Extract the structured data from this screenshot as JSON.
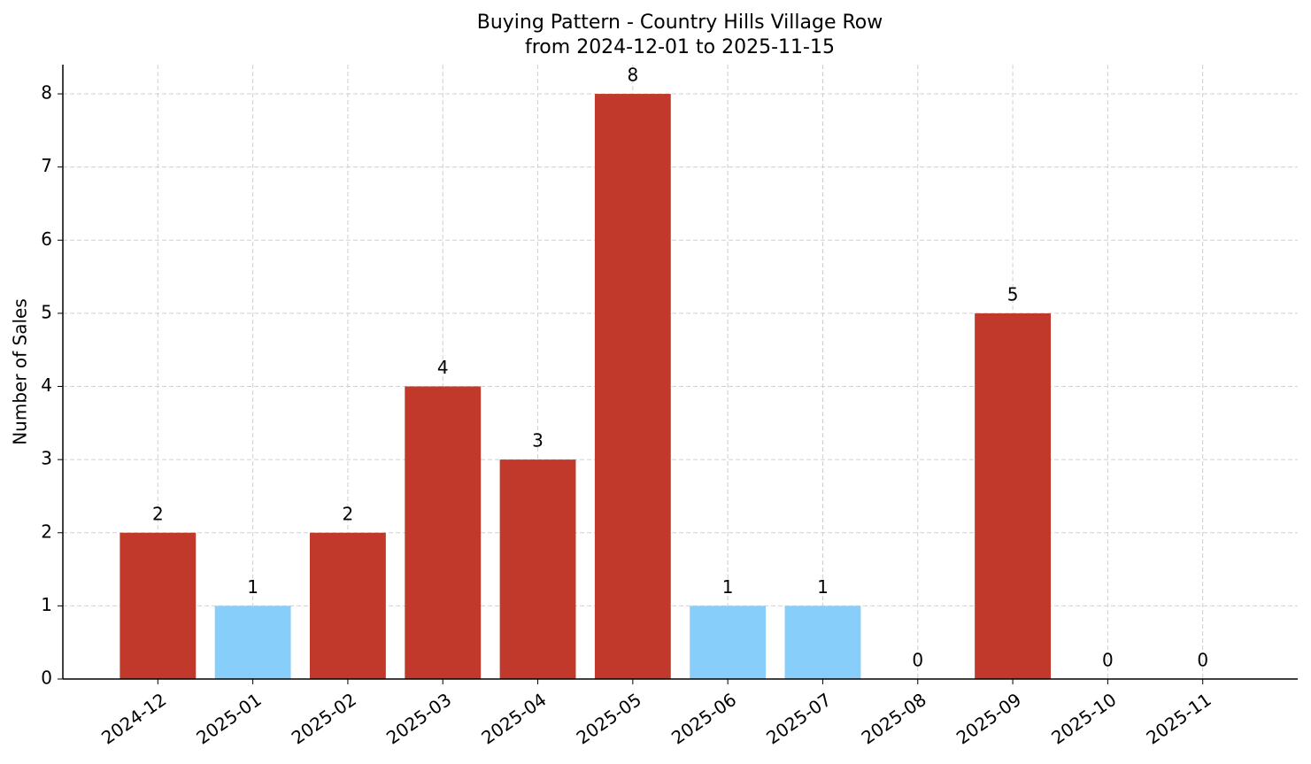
{
  "chart_data": {
    "type": "bar",
    "title": [
      "Buying Pattern - Country Hills Village Row",
      "from 2024-12-01 to 2025-11-15"
    ],
    "ylabel": "Number of Sales",
    "categories": [
      "2024-12",
      "2025-01",
      "2025-02",
      "2025-03",
      "2025-04",
      "2025-05",
      "2025-06",
      "2025-07",
      "2025-08",
      "2025-09",
      "2025-10",
      "2025-11"
    ],
    "values": [
      2,
      1,
      2,
      4,
      3,
      8,
      1,
      1,
      0,
      5,
      0,
      0
    ],
    "colors": [
      "#c0392b",
      "#87cefa",
      "#c0392b",
      "#c0392b",
      "#c0392b",
      "#c0392b",
      "#87cefa",
      "#87cefa",
      "#c0392b",
      "#c0392b",
      "#c0392b",
      "#c0392b"
    ],
    "ylim": [
      0,
      8.4
    ],
    "yticks": [
      0,
      1,
      2,
      3,
      4,
      5,
      6,
      7,
      8
    ],
    "grid": true
  }
}
